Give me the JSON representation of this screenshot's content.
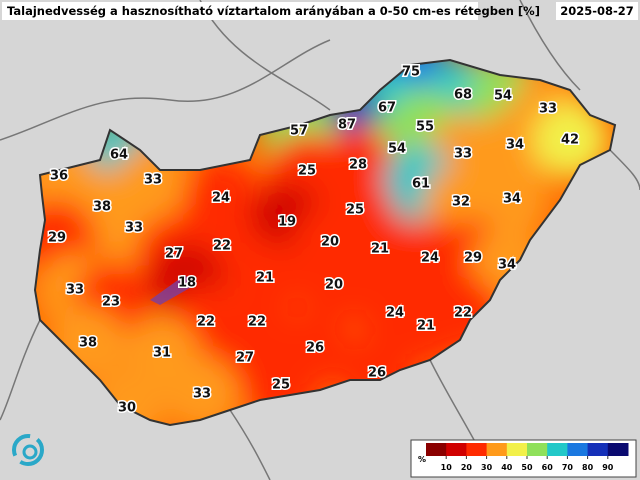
{
  "header": {
    "title": "Talajnedvesség a hasznosítható víztartalom arányában a 0-50 cm-es rétegben [%]",
    "date": "2025-08-27"
  },
  "labels": [
    75,
    68,
    54,
    33,
    67,
    87,
    55,
    57,
    34,
    42,
    64,
    54,
    33,
    25,
    28,
    36,
    33,
    61,
    32,
    34,
    24,
    38,
    25,
    19,
    33,
    29,
    20,
    21,
    27,
    22,
    24,
    29,
    34,
    21,
    20,
    18,
    33,
    23,
    24,
    22,
    21,
    22,
    22,
    38,
    31,
    26,
    27,
    26,
    25,
    33,
    30
  ],
  "legend": {
    "unit": "%",
    "ticks": [
      10,
      20,
      30,
      40,
      50,
      60,
      70,
      80,
      90
    ],
    "colors": [
      "#8a0000",
      "#d00000",
      "#ff2a00",
      "#ff9a1a",
      "#f2f04a",
      "#8fe05a",
      "#22c8c8",
      "#1a78e0",
      "#1530b8",
      "#0a0a70"
    ]
  }
}
